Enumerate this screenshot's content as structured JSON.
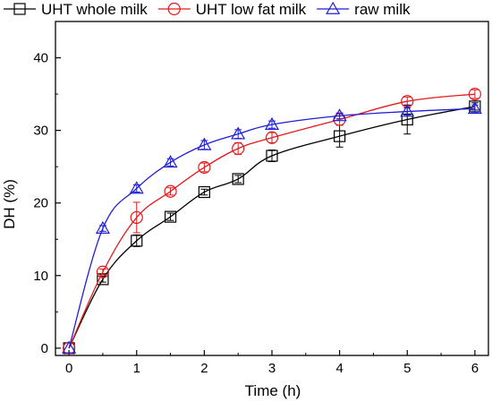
{
  "chart_data": {
    "type": "line",
    "xlabel": "Time (h)",
    "ylabel": "DH (%)",
    "xlim": [
      -0.2,
      6.2
    ],
    "ylim": [
      -1,
      45
    ],
    "x_ticks": [
      0,
      1,
      2,
      3,
      4,
      5,
      6
    ],
    "y_ticks": [
      0,
      10,
      20,
      30,
      40
    ],
    "x_tick_labels": [
      "0",
      "1",
      "2",
      "3",
      "4",
      "5",
      "6"
    ],
    "y_tick_labels": [
      "0",
      "10",
      "20",
      "30",
      "40"
    ],
    "grid": false,
    "legend_position": "top",
    "series": [
      {
        "name": "UHT whole milk",
        "color": "#000000",
        "marker": "square",
        "x": [
          0,
          0.5,
          1,
          1.5,
          2,
          2.5,
          3,
          4,
          5,
          6
        ],
        "y": [
          0,
          9.5,
          14.8,
          18.1,
          21.5,
          23.3,
          26.5,
          29.2,
          31.5,
          33.3
        ],
        "error": [
          0,
          0.4,
          0.8,
          0.5,
          0.4,
          0.5,
          0.8,
          1.5,
          2.0,
          0.5
        ]
      },
      {
        "name": "UHT low fat milk",
        "color": "#e31a1c",
        "marker": "circle",
        "x": [
          0,
          0.5,
          1,
          1.5,
          2,
          2.5,
          3,
          4,
          5,
          6
        ],
        "y": [
          0,
          10.5,
          18.0,
          21.6,
          24.9,
          27.5,
          29.0,
          31.5,
          34.0,
          35.0
        ],
        "error": [
          0,
          0.4,
          2.1,
          0.5,
          0.6,
          0.8,
          0.7,
          0.8,
          0.6,
          0.6
        ]
      },
      {
        "name": "raw milk",
        "color": "#1f1fd6",
        "marker": "triangle",
        "x": [
          0,
          0.5,
          1,
          1.5,
          2,
          2.5,
          3,
          4,
          5,
          6
        ],
        "y": [
          0,
          16.5,
          22.0,
          25.6,
          28.0,
          29.5,
          30.8,
          32.0,
          32.6,
          33.0
        ],
        "error": [
          0,
          0.4,
          0.5,
          0.5,
          0.6,
          0.6,
          0.5,
          0.4,
          0.5,
          0.5
        ]
      }
    ]
  }
}
